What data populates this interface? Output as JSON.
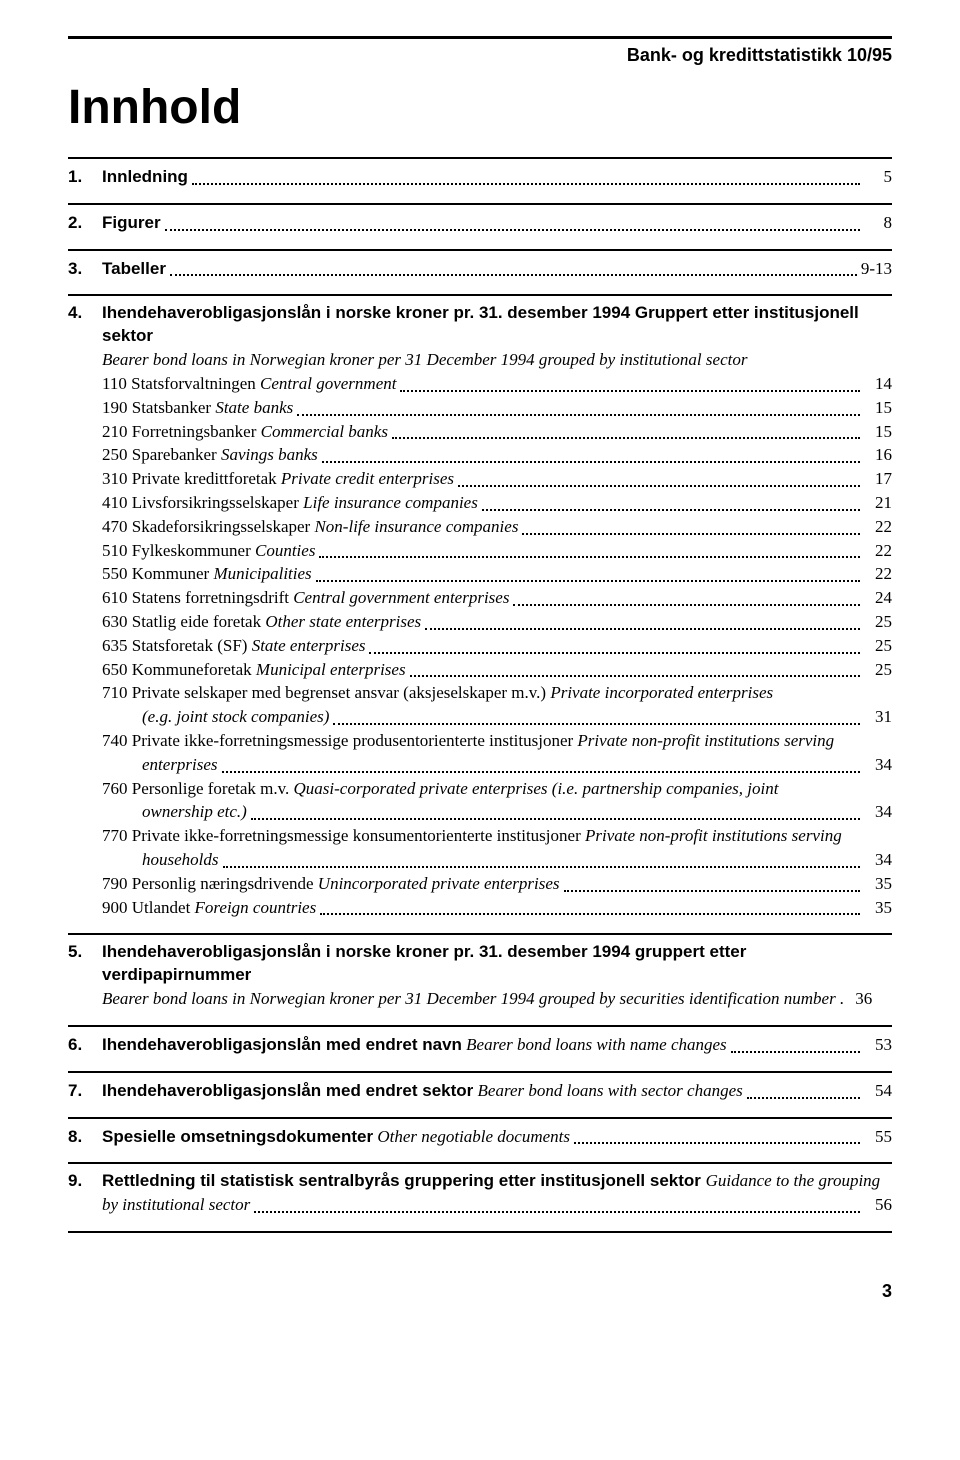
{
  "publication": "Bank- og kredittstatistikk 10/95",
  "title": "Innhold",
  "sections": {
    "s1": {
      "num": "1.",
      "title": "Innledning",
      "page": "5"
    },
    "s2": {
      "num": "2.",
      "title": "Figurer",
      "page": "8"
    },
    "s3": {
      "num": "3.",
      "title": "Tabeller",
      "page": "9-13"
    },
    "s4": {
      "num": "4.",
      "title_bold": "Ihendehaverobligasjonslån i norske kroner pr. 31. desember 1994 Gruppert etter institusjonell sektor",
      "title_italic": "Bearer bond loans in Norwegian kroner per 31 December 1994 grouped by institutional sector",
      "entries": [
        {
          "txt": "110 Statsforvaltningen",
          "it": "Central government",
          "page": "14"
        },
        {
          "txt": "190 Statsbanker",
          "it": "State banks",
          "page": "15"
        },
        {
          "txt": "210 Forretningsbanker",
          "it": "Commercial banks",
          "page": "15"
        },
        {
          "txt": "250 Sparebanker",
          "it": "Savings banks",
          "page": "16"
        },
        {
          "txt": "310 Private kredittforetak",
          "it": "Private credit enterprises",
          "page": "17"
        },
        {
          "txt": "410 Livsforsikringsselskaper",
          "it": "Life insurance companies",
          "page": "21"
        },
        {
          "txt": "470 Skadeforsikringsselskaper",
          "it": "Non-life insurance companies",
          "page": "22"
        },
        {
          "txt": "510 Fylkeskommuner",
          "it": "Counties",
          "page": "22"
        },
        {
          "txt": "550 Kommuner",
          "it": "Municipalities",
          "page": "22"
        },
        {
          "txt": "610 Statens forretningsdrift",
          "it": "Central government enterprises",
          "page": "24"
        },
        {
          "txt": "630 Statlig eide foretak",
          "it": "Other state enterprises",
          "page": "25"
        },
        {
          "txt": "635 Statsforetak (SF)",
          "it": "State enterprises",
          "page": "25"
        },
        {
          "txt": "650 Kommuneforetak",
          "it": "Municipal enterprises",
          "page": "25"
        }
      ],
      "multi1": {
        "line1_txt": "710 Private selskaper med begrenset ansvar (aksjeselskaper m.v.)",
        "line1_it": "Private incorporated enterprises",
        "line2_it": "(e.g. joint stock companies)",
        "page": "31"
      },
      "multi2": {
        "line1_txt": "740 Private ikke-forretningsmessige produsentorienterte institusjoner",
        "line1_it": "Private non-profit institutions serving",
        "line2_it": "enterprises",
        "page": "34"
      },
      "multi3": {
        "line1_txt": "760 Personlige foretak m.v.",
        "line1_it": "Quasi-corporated private enterprises (i.e. partnership companies, joint",
        "line2_it": "ownership etc.)",
        "page": "34"
      },
      "multi4": {
        "line1_txt": "770 Private ikke-forretningsmessige konsumentorienterte institusjoner",
        "line1_it": "Private non-profit institutions serving",
        "line2_it": "households",
        "page": "34"
      },
      "tail": [
        {
          "txt": "790 Personlig næringsdrivende",
          "it": "Unincorporated private enterprises",
          "page": "35"
        },
        {
          "txt": "900 Utlandet",
          "it": "Foreign countries",
          "page": "35"
        }
      ]
    },
    "s5": {
      "num": "5.",
      "title_bold": "Ihendehaverobligasjonslån i norske kroner pr. 31. desember 1994 gruppert etter verdipapirnummer",
      "sub_it": "Bearer bond loans in Norwegian kroner per 31 December 1994 grouped by securities identification number .",
      "page": "36"
    },
    "s6": {
      "num": "6.",
      "title_bold": "Ihendehaverobligasjonslån med endret navn",
      "title_it": "Bearer bond loans with name changes",
      "page": "53"
    },
    "s7": {
      "num": "7.",
      "title_bold": "Ihendehaverobligasjonslån med endret sektor",
      "title_it": "Bearer bond loans with sector changes",
      "page": "54"
    },
    "s8": {
      "num": "8.",
      "title_bold": "Spesielle omsetningsdokumenter",
      "title_it": "Other negotiable documents",
      "page": "55"
    },
    "s9": {
      "num": "9.",
      "title_bold": "Rettledning til statistisk sentralbyrås gruppering etter institusjonell sektor",
      "title_it": "Guidance to the grouping",
      "sub_it": "by institutional sector",
      "page": "56"
    }
  },
  "footer_page": "3"
}
